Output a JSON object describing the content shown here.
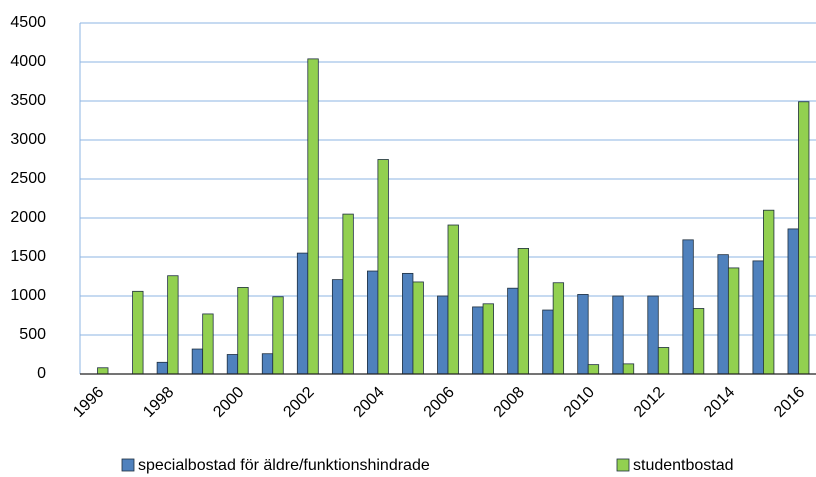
{
  "chart_data": {
    "type": "bar",
    "categories": [
      "1996",
      null,
      "1998",
      null,
      "2000",
      null,
      "2002",
      null,
      "2004",
      null,
      "2006",
      null,
      "2008",
      null,
      "2010",
      null,
      "2012",
      null,
      "2014",
      null,
      "2016"
    ],
    "series": [
      {
        "name": "specialbostad för äldre/funktionshindrade",
        "color": "#4f81bd",
        "values": [
          0,
          0,
          150,
          320,
          250,
          260,
          1550,
          1210,
          1320,
          1290,
          1000,
          860,
          1100,
          820,
          1020,
          1000,
          1000,
          1720,
          1530,
          1450,
          1860
        ]
      },
      {
        "name": "studentbostad",
        "color": "#92d050",
        "values": [
          80,
          1060,
          1260,
          770,
          1110,
          990,
          4040,
          2050,
          2750,
          1180,
          1910,
          900,
          1610,
          1170,
          120,
          130,
          340,
          840,
          1360,
          2100,
          3490
        ]
      }
    ],
    "ylim": [
      0,
      4500
    ],
    "yticks": [
      0,
      500,
      1000,
      1500,
      2000,
      2500,
      3000,
      3500,
      4000,
      4500
    ],
    "grid": true,
    "legend": "bottom"
  }
}
